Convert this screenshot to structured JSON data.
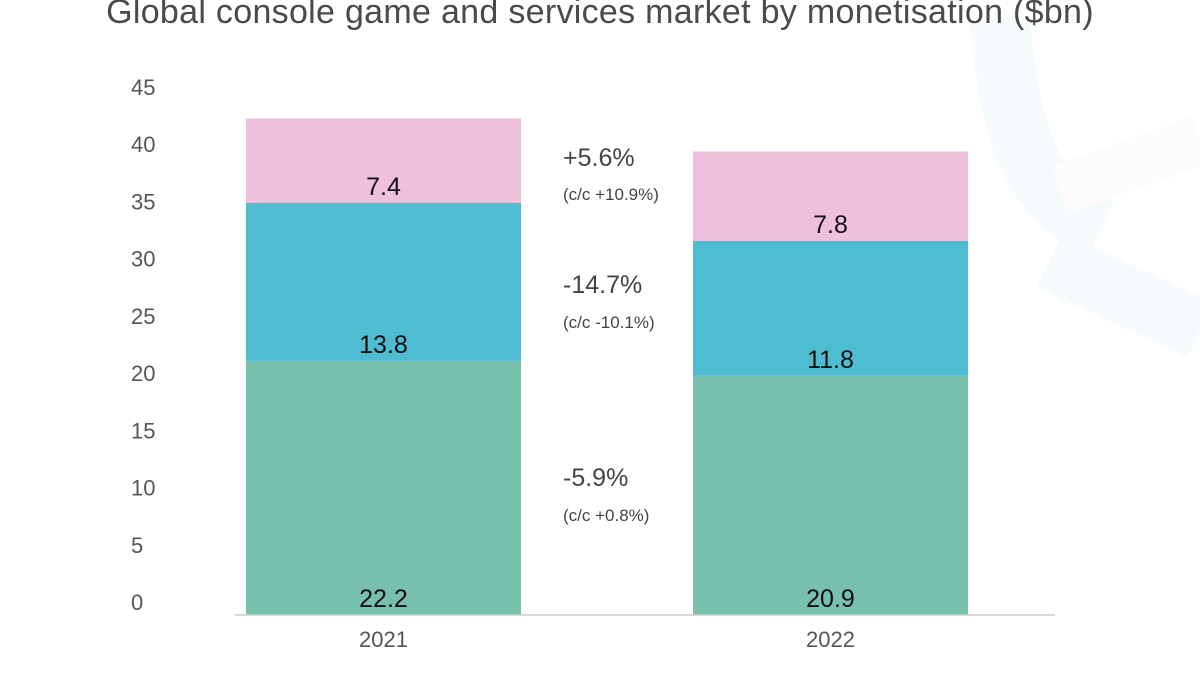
{
  "chart_data": {
    "type": "bar",
    "stacked": true,
    "title": "Global console game and services market by monetisation ($bn)",
    "xlabel": "",
    "ylabel": "",
    "categories": [
      "2021",
      "2022"
    ],
    "ylim": [
      0,
      45
    ],
    "yticks": [
      "0",
      "5",
      "10",
      "15",
      "20",
      "25",
      "30",
      "35",
      "40",
      "45"
    ],
    "grid": false,
    "legend": "none",
    "series": [
      {
        "values": [
          22.2,
          20.9
        ],
        "labels": [
          "22.2",
          "20.9"
        ],
        "color": "#79c0ac"
      },
      {
        "values": [
          13.8,
          11.8
        ],
        "labels": [
          "13.8",
          "11.8"
        ],
        "color": "#4ebdd1"
      },
      {
        "values": [
          7.4,
          7.8
        ],
        "labels": [
          "7.4",
          "7.8"
        ],
        "color": "#efc0dc"
      }
    ],
    "annotations": [
      {
        "change": "+5.6%",
        "cc": "(c/c +10.9%)"
      },
      {
        "change": "-14.7%",
        "cc": "(c/c -10.1%)"
      },
      {
        "change": "-5.9%",
        "cc": "(c/c +0.8%)"
      }
    ]
  }
}
